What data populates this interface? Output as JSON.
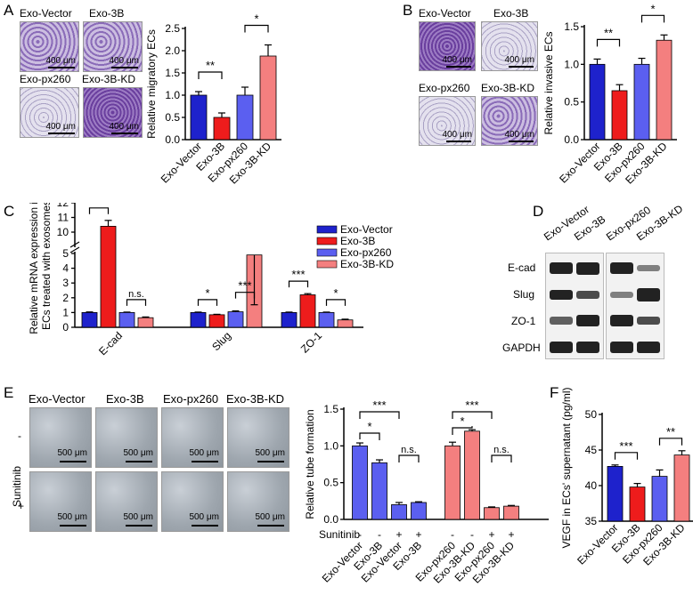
{
  "panel_letters": {
    "a": "A",
    "b": "B",
    "c": "C",
    "d": "D",
    "e": "E",
    "f": "F"
  },
  "panelA": {
    "image_labels": [
      "Exo-Vector",
      "Exo-3B",
      "Exo-px260",
      "Exo-3B-KD"
    ],
    "scale": "400 μm"
  },
  "panelB": {
    "image_labels": [
      "Exo-Vector",
      "Exo-3B",
      "Exo-px260",
      "Exo-3B-KD"
    ],
    "scale": "400 μm"
  },
  "panelD": {
    "lanes": [
      "Exo-Vector",
      "Exo-3B",
      "Exo-px260",
      "Exo-3B-KD"
    ],
    "proteins": [
      "E-cad",
      "Slug",
      "ZO-1",
      "GAPDH"
    ]
  },
  "panelE": {
    "columns": [
      "Exo-Vector",
      "Exo-3B",
      "Exo-px260",
      "Exo-3B-KD"
    ],
    "rows": [
      "-",
      "+"
    ],
    "row_title": "Sunitinib",
    "scale": "500 μm"
  },
  "colors": {
    "blue": "#1e22cc",
    "red": "#ee1c1c",
    "lightblue": "#5b5ff0",
    "pink": "#f47f7f"
  },
  "chart_data": [
    {
      "id": "A",
      "type": "bar",
      "categories": [
        "Exo-Vector",
        "Exo-3B",
        "Exo-px260",
        "Exo-3B-KD"
      ],
      "values": [
        1.0,
        0.5,
        1.0,
        1.88
      ],
      "errors": [
        0.08,
        0.1,
        0.18,
        0.25
      ],
      "ylabel": "Relative migratory ECs",
      "ylim": [
        0,
        2.5
      ],
      "yticks": [
        0.0,
        0.5,
        1.0,
        1.5,
        2.0,
        2.5
      ],
      "significance": [
        {
          "pair": [
            0,
            1
          ],
          "label": "**"
        },
        {
          "pair": [
            2,
            3
          ],
          "label": "*"
        }
      ]
    },
    {
      "id": "B",
      "type": "bar",
      "categories": [
        "Exo-Vector",
        "Exo-3B",
        "Exo-px260",
        "Exo-3B-KD"
      ],
      "values": [
        1.0,
        0.65,
        1.0,
        1.32
      ],
      "errors": [
        0.07,
        0.08,
        0.08,
        0.07
      ],
      "ylabel": "Relative invasive ECs",
      "ylim": [
        0,
        1.5
      ],
      "yticks": [
        0.0,
        0.5,
        1.0,
        1.5
      ],
      "significance": [
        {
          "pair": [
            0,
            1
          ],
          "label": "**"
        },
        {
          "pair": [
            2,
            3
          ],
          "label": "*"
        }
      ]
    },
    {
      "id": "C",
      "type": "bar",
      "groups": [
        "E-cad",
        "Slug",
        "ZO-1"
      ],
      "series": [
        {
          "name": "Exo-Vector",
          "values": [
            1.0,
            1.0,
            1.0
          ],
          "errors": [
            0.04,
            0.03,
            0.03
          ]
        },
        {
          "name": "Exo-3B",
          "values": [
            10.4,
            0.85,
            2.2
          ],
          "errors": [
            0.4,
            0.03,
            0.08
          ]
        },
        {
          "name": "Exo-px260",
          "values": [
            1.0,
            1.05,
            1.0
          ],
          "errors": [
            0.03,
            0.06,
            0.03
          ]
        },
        {
          "name": "Exo-3B-KD",
          "values": [
            0.65,
            4.9,
            0.5
          ],
          "errors": [
            0.05,
            0.15,
            0.05
          ]
        }
      ],
      "ylabel": "Relative mRNA expression in ECs treated with exosomes",
      "yticks": [
        0,
        1,
        2,
        3,
        4,
        5,
        10,
        11,
        12
      ],
      "significance": [
        {
          "group": 0,
          "pair": [
            0,
            1
          ],
          "label": "***"
        },
        {
          "group": 0,
          "pair": [
            2,
            3
          ],
          "label": "n.s."
        },
        {
          "group": 1,
          "pair": [
            0,
            1
          ],
          "label": "*"
        },
        {
          "group": 1,
          "pair": [
            2,
            3
          ],
          "label": "***"
        },
        {
          "group": 2,
          "pair": [
            0,
            1
          ],
          "label": "***"
        },
        {
          "group": 2,
          "pair": [
            2,
            3
          ],
          "label": "*"
        }
      ]
    },
    {
      "id": "E",
      "type": "bar",
      "categories": [
        "Exo-Vector",
        "Exo-3B",
        "Exo-Vector",
        "Exo-3B",
        "Exo-px260",
        "Exo-3B-KD",
        "Exo-px260",
        "Exo-3B-KD"
      ],
      "sunitinib": [
        "-",
        "-",
        "+",
        "+",
        "-",
        "-",
        "+",
        "+"
      ],
      "sunitinib_label": "Sunitinib",
      "values": [
        1.0,
        0.77,
        0.2,
        0.23,
        1.0,
        1.2,
        0.16,
        0.18
      ],
      "errors": [
        0.04,
        0.04,
        0.03,
        0.01,
        0.05,
        0.02,
        0.01,
        0.01
      ],
      "ylabel": "Relative tube formation",
      "ylim": [
        0,
        1.5
      ],
      "yticks": [
        0.0,
        0.5,
        1.0,
        1.5
      ],
      "significance": [
        {
          "pair": [
            0,
            1
          ],
          "label": "*"
        },
        {
          "pair": [
            0,
            2
          ],
          "label": "***"
        },
        {
          "pair": [
            2,
            3
          ],
          "label": "n.s."
        },
        {
          "pair": [
            4,
            5
          ],
          "label": "*"
        },
        {
          "pair": [
            4,
            6
          ],
          "label": "***"
        },
        {
          "pair": [
            6,
            7
          ],
          "label": "n.s."
        }
      ]
    },
    {
      "id": "F",
      "type": "bar",
      "categories": [
        "Exo-Vector",
        "Exo-3B",
        "Exo-px260",
        "Exo-3B-KD"
      ],
      "values": [
        42.7,
        39.8,
        41.3,
        44.3
      ],
      "errors": [
        0.2,
        0.5,
        0.9,
        0.6
      ],
      "ylabel": "VEGF in ECs' supernatant (pg/ml)",
      "ylim": [
        35,
        50
      ],
      "yticks": [
        35,
        40,
        45,
        50
      ],
      "significance": [
        {
          "pair": [
            0,
            1
          ],
          "label": "***"
        },
        {
          "pair": [
            2,
            3
          ],
          "label": "**"
        }
      ]
    }
  ]
}
